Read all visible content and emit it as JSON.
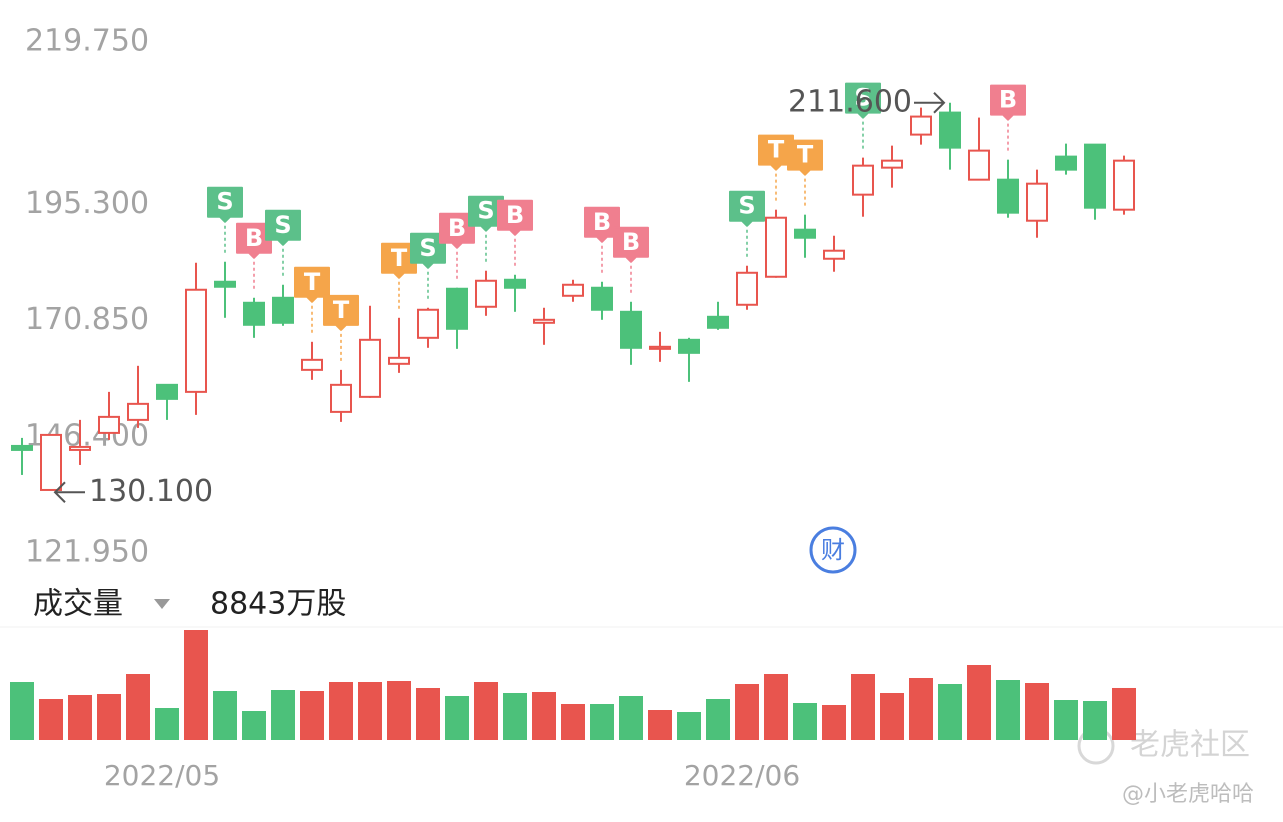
{
  "chart_data": {
    "type": "candlestick",
    "ylim": [
      121.95,
      219.75
    ],
    "yticks": [
      {
        "value": 121.95,
        "label": "121.950"
      },
      {
        "value": 146.4,
        "label": "146.400"
      },
      {
        "value": 170.85,
        "label": "170.850"
      },
      {
        "value": 195.3,
        "label": "195.300"
      },
      {
        "value": 219.75,
        "label": "219.750"
      }
    ],
    "grid": false,
    "up_color": "#e8554e",
    "down_color": "#4cc17a",
    "categories": [
      null,
      null,
      null,
      null,
      null,
      "2022/05",
      null,
      null,
      null,
      null,
      null,
      null,
      null,
      null,
      null,
      null,
      null,
      null,
      null,
      null,
      null,
      null,
      null,
      null,
      null,
      "2022/06",
      null,
      null,
      null,
      null,
      null,
      null,
      null,
      null,
      null,
      null,
      null,
      null,
      null
    ],
    "open": [
      139.42,
      130.16,
      138.58,
      142.16,
      144.9,
      152.27,
      150.79,
      173.95,
      169.53,
      170.58,
      155.42,
      146.58,
      149.74,
      156.69,
      162.16,
      172.48,
      168.69,
      174.37,
      165.32,
      171.0,
      172.69,
      167.63,
      159.84,
      161.74,
      166.58,
      169.11,
      175.0,
      184.9,
      178.79,
      192.27,
      197.95,
      204.9,
      209.53,
      195.42,
      195.42,
      186.79,
      200.27,
      202.79,
      189.11
    ],
    "high": [
      141.11,
      141.74,
      144.9,
      150.79,
      156.27,
      152.27,
      177.95,
      178.16,
      170.58,
      173.32,
      161.32,
      155.42,
      168.9,
      166.37,
      168.48,
      172.69,
      176.27,
      175.42,
      168.48,
      174.37,
      173.95,
      169.74,
      163.42,
      162.16,
      169.74,
      177.32,
      189.11,
      188.06,
      183.63,
      200.06,
      202.58,
      210.58,
      211.6,
      208.48,
      199.63,
      197.53,
      203.0,
      202.79,
      200.48
    ],
    "low": [
      133.32,
      130.1,
      135.42,
      140.69,
      143.21,
      144.9,
      145.95,
      166.37,
      162.16,
      164.69,
      153.32,
      144.48,
      149.53,
      154.79,
      160.06,
      159.84,
      166.79,
      167.63,
      160.69,
      169.74,
      165.95,
      156.48,
      157.11,
      152.9,
      163.84,
      168.06,
      174.79,
      179.0,
      176.06,
      187.63,
      193.74,
      202.79,
      197.53,
      195.42,
      187.42,
      183.21,
      196.48,
      187.0,
      188.06
    ],
    "close": [
      138.58,
      141.74,
      139.21,
      145.53,
      148.27,
      149.32,
      172.27,
      172.9,
      164.9,
      165.32,
      157.53,
      152.27,
      161.74,
      157.95,
      168.06,
      164.06,
      174.16,
      172.69,
      165.95,
      173.32,
      168.06,
      160.06,
      160.27,
      159.0,
      164.27,
      175.84,
      187.42,
      183.21,
      180.48,
      198.37,
      199.42,
      208.69,
      202.16,
      201.53,
      188.48,
      194.58,
      197.53,
      189.53,
      199.42
    ],
    "signals": [
      null,
      null,
      null,
      null,
      null,
      null,
      null,
      "S",
      "B",
      "S",
      "T",
      "T",
      null,
      "T",
      "S",
      "B",
      "S",
      "B",
      null,
      null,
      "B",
      "B",
      null,
      null,
      null,
      "S",
      "T",
      "T",
      null,
      "S",
      null,
      null,
      null,
      null,
      "B",
      null,
      null,
      null,
      null
    ],
    "signal_colors": {
      "S": "#5cc08a",
      "B": "#f07f8f",
      "T": "#f5a54a"
    },
    "high_label": "211.600",
    "low_label": "130.100",
    "volume_title": "成交量",
    "volume_label": "8843万股",
    "volume": [
      9860,
      6970,
      7650,
      7820,
      11220,
      5440,
      18700,
      8330,
      4930,
      8500,
      8330,
      9860,
      9860,
      10030,
      8840,
      7480,
      9860,
      7990,
      8160,
      6120,
      6120,
      7480,
      5100,
      4760,
      6970,
      9520,
      11220,
      6290,
      5950,
      11220,
      7990,
      10540,
      9520,
      12750,
      10200,
      9690,
      6800,
      6630,
      8843
    ]
  },
  "icon_label": "财",
  "watermark": "老虎社区",
  "author": "@小老虎哈哈"
}
